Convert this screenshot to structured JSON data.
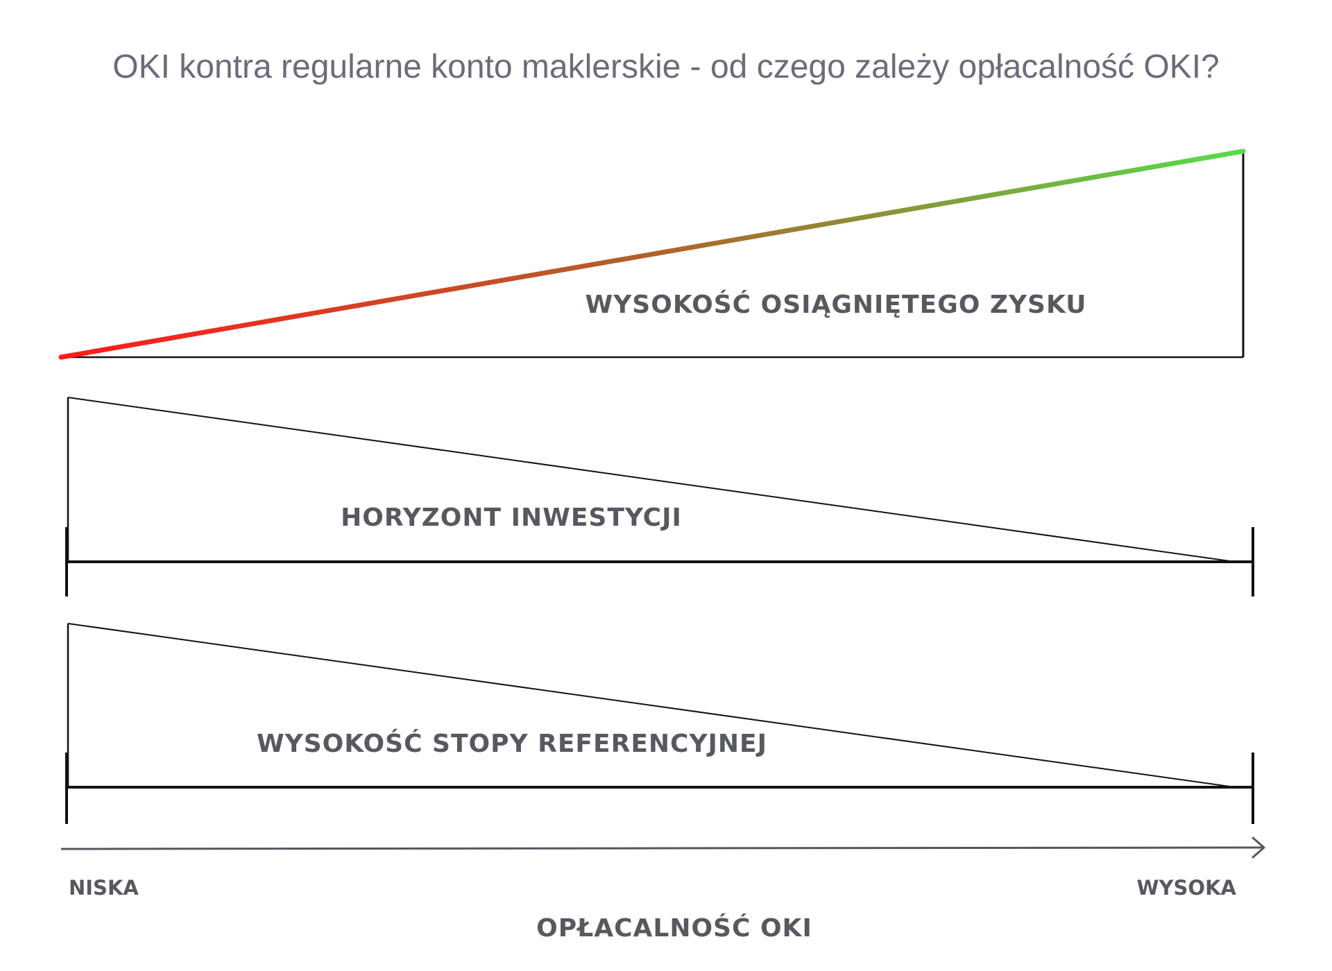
{
  "title": "OKI kontra regularne konto maklerskie - od czego zależy opłacalność OKI?",
  "bands": [
    {
      "label": "WYSOKOŚĆ OSIĄGNIĘTEGO ZYSKU",
      "direction": "increasing",
      "line_gradient": [
        "#ff1a1a",
        "#b0622a",
        "#55dd4a"
      ]
    },
    {
      "label": "HORYZONT INWESTYCJI",
      "direction": "decreasing"
    },
    {
      "label": "WYSOKOŚĆ STOPY REFERENCYJNEJ",
      "direction": "decreasing"
    }
  ],
  "axis": {
    "low_label": "NISKA",
    "high_label": "WYSOKA",
    "label": "OPŁACALNOŚĆ OKI"
  },
  "colors": {
    "text": "#585860",
    "title": "#6b6b7b",
    "lines": "#111111",
    "axis": "#55555f"
  }
}
